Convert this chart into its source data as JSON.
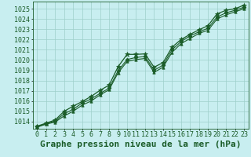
{
  "title": "Graphe pression niveau de la mer (hPa)",
  "background_color": "#c8eef0",
  "grid_color": "#9ecfca",
  "line_color": "#1a5c28",
  "marker_color": "#1a5c28",
  "xlim": [
    -0.5,
    23.5
  ],
  "ylim": [
    1013.3,
    1025.7
  ],
  "yticks": [
    1014,
    1015,
    1016,
    1017,
    1018,
    1019,
    1020,
    1021,
    1022,
    1023,
    1024,
    1025
  ],
  "xticks": [
    0,
    1,
    2,
    3,
    4,
    5,
    6,
    7,
    8,
    9,
    10,
    11,
    12,
    13,
    14,
    15,
    16,
    17,
    18,
    19,
    20,
    21,
    22,
    23
  ],
  "series": [
    {
      "x": [
        0,
        1,
        2,
        3,
        4,
        5,
        6,
        7,
        8,
        9,
        10,
        11,
        12,
        13,
        14,
        15,
        16,
        17,
        18,
        19,
        20,
        21,
        22,
        23
      ],
      "y": [
        1013.55,
        1013.85,
        1014.15,
        1015.0,
        1015.5,
        1015.95,
        1016.45,
        1017.05,
        1017.55,
        1019.35,
        1020.55,
        1020.55,
        1020.6,
        1019.3,
        1019.75,
        1021.25,
        1022.0,
        1022.5,
        1022.95,
        1023.35,
        1024.5,
        1024.85,
        1025.0,
        1025.35
      ]
    },
    {
      "x": [
        0,
        1,
        2,
        3,
        4,
        5,
        6,
        7,
        8,
        9,
        10,
        11,
        12,
        13,
        14,
        15,
        16,
        17,
        18,
        19,
        20,
        21,
        22,
        23
      ],
      "y": [
        1013.5,
        1013.8,
        1014.05,
        1014.75,
        1015.2,
        1015.8,
        1016.2,
        1016.75,
        1017.25,
        1018.95,
        1020.05,
        1020.25,
        1020.35,
        1019.0,
        1019.5,
        1021.0,
        1021.8,
        1022.35,
        1022.75,
        1023.1,
        1024.2,
        1024.6,
        1024.85,
        1025.15
      ]
    },
    {
      "x": [
        0,
        1,
        2,
        3,
        4,
        5,
        6,
        7,
        8,
        9,
        10,
        11,
        12,
        13,
        14,
        15,
        16,
        17,
        18,
        19,
        20,
        21,
        22,
        23
      ],
      "y": [
        1013.45,
        1013.75,
        1013.95,
        1014.55,
        1015.0,
        1015.6,
        1016.0,
        1016.6,
        1017.1,
        1018.75,
        1019.85,
        1020.05,
        1020.15,
        1018.8,
        1019.3,
        1020.75,
        1021.6,
        1022.1,
        1022.6,
        1022.9,
        1024.0,
        1024.4,
        1024.7,
        1025.0
      ]
    }
  ],
  "title_fontsize": 8,
  "tick_fontsize": 6,
  "title_color": "#1a5c28",
  "tick_color": "#1a5c28"
}
